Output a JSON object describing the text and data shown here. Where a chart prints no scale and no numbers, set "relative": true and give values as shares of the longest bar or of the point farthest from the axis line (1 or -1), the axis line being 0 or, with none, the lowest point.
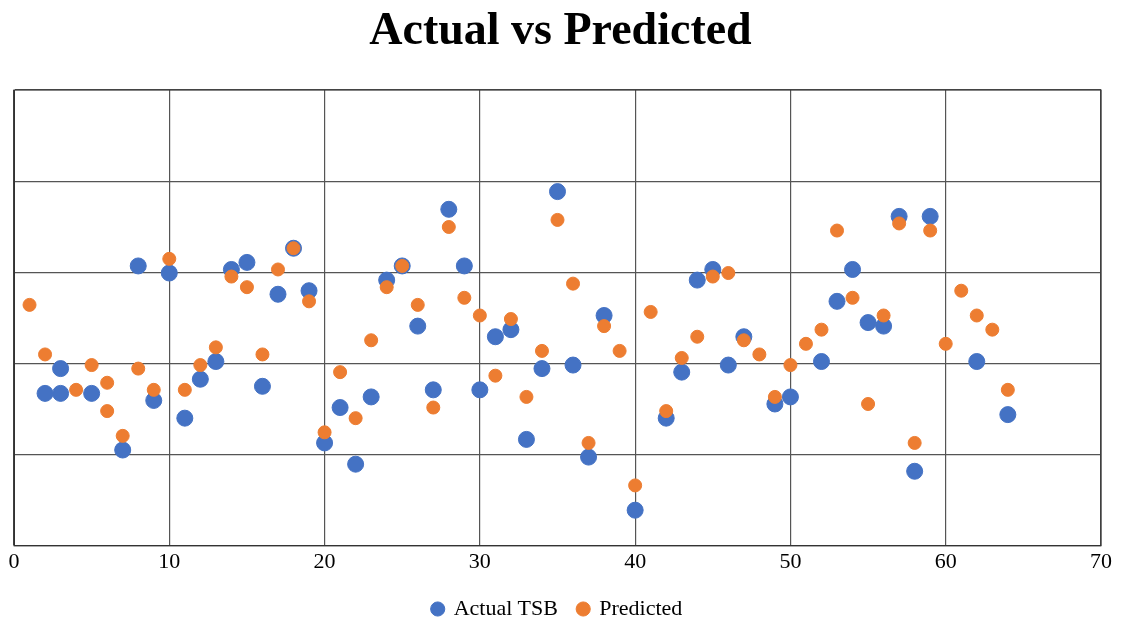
{
  "chart_data": {
    "type": "scatter",
    "title": "Actual vs Predicted",
    "relative": true,
    "xlim": [
      0,
      70
    ],
    "xticks": [
      0,
      10,
      20,
      30,
      40,
      50,
      60,
      70
    ],
    "grid": true,
    "legend": "bottom",
    "marker": "circle",
    "series": [
      {
        "name": "Actual TSB",
        "color": "#4472c4",
        "x": [
          2,
          3,
          3,
          5,
          7,
          8,
          9,
          10,
          11,
          12,
          13,
          14,
          15,
          16,
          17,
          18,
          19,
          20,
          21,
          22,
          23,
          24,
          25,
          26,
          27,
          28,
          29,
          30,
          31,
          32,
          33,
          34,
          35,
          36,
          37,
          38,
          40,
          42,
          43,
          44,
          45,
          46,
          47,
          49,
          50,
          52,
          53,
          54,
          55,
          56,
          57,
          58,
          59,
          62,
          64
        ],
        "values": [
          0.43,
          0.5,
          0.43,
          0.43,
          0.27,
          0.79,
          0.41,
          0.77,
          0.36,
          0.47,
          0.52,
          0.78,
          0.8,
          0.45,
          0.71,
          0.84,
          0.72,
          0.29,
          0.39,
          0.23,
          0.42,
          0.75,
          0.79,
          0.62,
          0.44,
          0.95,
          0.79,
          0.44,
          0.59,
          0.61,
          0.3,
          0.5,
          1,
          0.51,
          0.25,
          0.65,
          0.1,
          0.36,
          0.49,
          0.75,
          0.78,
          0.51,
          0.59,
          0.4,
          0.42,
          0.52,
          0.69,
          0.78,
          0.63,
          0.62,
          0.93,
          0.21,
          0.93,
          0.52,
          0.37
        ]
      },
      {
        "name": "Predicted",
        "color": "#ed7d31",
        "x": [
          1,
          2,
          4,
          5,
          6,
          6,
          7,
          8,
          9,
          10,
          11,
          12,
          13,
          14,
          15,
          16,
          17,
          18,
          19,
          20,
          21,
          22,
          23,
          24,
          25,
          26,
          27,
          28,
          29,
          30,
          31,
          32,
          33,
          34,
          35,
          36,
          37,
          38,
          39,
          40,
          41,
          42,
          43,
          44,
          45,
          46,
          47,
          48,
          49,
          50,
          51,
          52,
          53,
          54,
          55,
          56,
          57,
          58,
          59,
          60,
          61,
          62,
          63,
          64
        ],
        "values": [
          0.68,
          0.54,
          0.44,
          0.51,
          0.46,
          0.38,
          0.31,
          0.5,
          0.44,
          0.81,
          0.44,
          0.51,
          0.56,
          0.76,
          0.73,
          0.54,
          0.78,
          0.84,
          0.69,
          0.32,
          0.49,
          0.36,
          0.58,
          0.73,
          0.79,
          0.68,
          0.39,
          0.9,
          0.7,
          0.65,
          0.48,
          0.64,
          0.42,
          0.55,
          0.92,
          0.74,
          0.29,
          0.62,
          0.55,
          0.17,
          0.66,
          0.38,
          0.53,
          0.59,
          0.76,
          0.77,
          0.58,
          0.54,
          0.42,
          0.51,
          0.57,
          0.61,
          0.89,
          0.7,
          0.4,
          0.65,
          0.91,
          0.29,
          0.89,
          0.57,
          0.72,
          0.65,
          0.61,
          0.44
        ]
      }
    ]
  }
}
